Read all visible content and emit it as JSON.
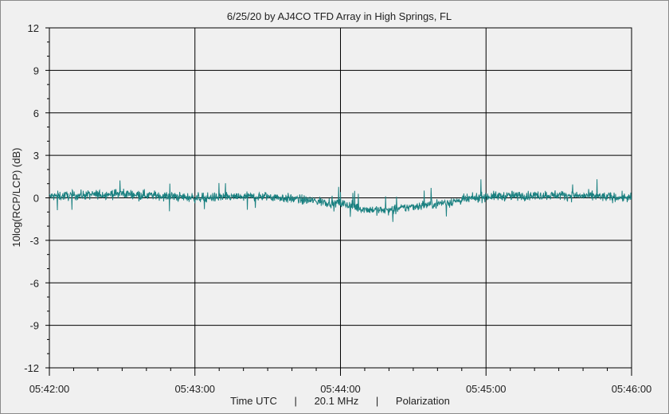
{
  "chart_data": {
    "type": "line",
    "title": "6/25/20  by  AJ4CO TFD Array  in  High Springs, FL",
    "ylabel": "10log(RCP/LCP) (dB)",
    "xlabel": "Time UTC      |      20.1 MHz      |      Polarization",
    "ylim": [
      -12,
      12
    ],
    "y_ticks": [
      "12",
      "9",
      "6",
      "3",
      "0",
      "-3",
      "-6",
      "-9",
      "-12"
    ],
    "y_tick_values": [
      12,
      9,
      6,
      3,
      0,
      -3,
      -6,
      -9,
      -12
    ],
    "x_ticks": [
      "05:42:00",
      "05:43:00",
      "05:44:00",
      "05:45:00",
      "05:46:00"
    ],
    "x_range_minutes": [
      0,
      4
    ],
    "grid": true,
    "series": [
      {
        "color": "#1a8080",
        "x_start": "05:42:00",
        "x_end": "05:46:00",
        "approx_points": [
          {
            "t": "05:42:00",
            "y": 0.1
          },
          {
            "t": "05:42:30",
            "y": 0.3
          },
          {
            "t": "05:43:00",
            "y": 0.0
          },
          {
            "t": "05:43:30",
            "y": 0.1
          },
          {
            "t": "05:44:00",
            "y": -0.4
          },
          {
            "t": "05:44:10",
            "y": -0.8
          },
          {
            "t": "05:44:20",
            "y": -0.9
          },
          {
            "t": "05:44:30",
            "y": -0.6
          },
          {
            "t": "05:44:45",
            "y": -0.3
          },
          {
            "t": "05:45:00",
            "y": 0.1
          },
          {
            "t": "05:45:30",
            "y": 0.2
          },
          {
            "t": "05:46:00",
            "y": 0.0
          }
        ],
        "noise_amplitude_db": 0.6
      }
    ]
  }
}
